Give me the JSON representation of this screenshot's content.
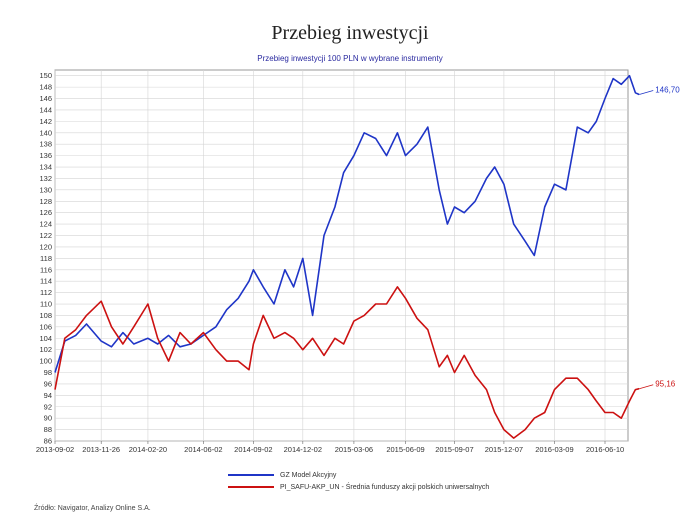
{
  "page": {
    "title": "Przebieg inwestycji",
    "source": "Źródło: Navigator, Analizy Online S.A."
  },
  "chart_data": {
    "type": "line",
    "title": "Przebieg inwestycji 100 PLN w wybrane instrumenty",
    "xlabel": "",
    "ylabel": "",
    "ylim": [
      86,
      151
    ],
    "grid": true,
    "legend_position": "bottom",
    "x_ticks": [
      "2013-09-02",
      "2013-11-26",
      "2014-02-20",
      "2014-06-02",
      "2014-09-02",
      "2014-12-02",
      "2015-03-06",
      "2015-06-09",
      "2015-09-07",
      "2015-12-07",
      "2016-03-09",
      "2016-06-10"
    ],
    "y_ticks": [
      86,
      88,
      90,
      92,
      94,
      96,
      98,
      100,
      102,
      104,
      106,
      108,
      110,
      112,
      114,
      116,
      118,
      120,
      122,
      124,
      126,
      128,
      130,
      132,
      134,
      136,
      138,
      140,
      142,
      144,
      146,
      148,
      150
    ],
    "series": [
      {
        "name": "GZ Model Akcyjny",
        "color": "#1f35c7",
        "end_label": "146,70",
        "x": [
          "2013-09-02",
          "2013-09-20",
          "2013-10-10",
          "2013-10-30",
          "2013-11-26",
          "2013-12-15",
          "2014-01-05",
          "2014-01-25",
          "2014-02-20",
          "2014-03-10",
          "2014-03-30",
          "2014-04-20",
          "2014-05-10",
          "2014-06-02",
          "2014-06-25",
          "2014-07-15",
          "2014-08-05",
          "2014-08-25",
          "2014-09-02",
          "2014-09-20",
          "2014-10-10",
          "2014-10-30",
          "2014-11-15",
          "2014-12-02",
          "2014-12-20",
          "2015-01-10",
          "2015-01-30",
          "2015-02-15",
          "2015-03-06",
          "2015-03-25",
          "2015-04-15",
          "2015-05-05",
          "2015-05-25",
          "2015-06-09",
          "2015-06-30",
          "2015-07-20",
          "2015-08-10",
          "2015-08-25",
          "2015-09-07",
          "2015-09-25",
          "2015-10-15",
          "2015-11-05",
          "2015-11-20",
          "2015-12-07",
          "2015-12-25",
          "2016-01-15",
          "2016-02-01",
          "2016-02-20",
          "2016-03-09",
          "2016-03-30",
          "2016-04-20",
          "2016-05-10",
          "2016-05-25",
          "2016-06-10",
          "2016-06-25",
          "2016-07-10",
          "2016-07-25",
          "2016-08-05",
          "2016-08-12"
        ],
        "values": [
          98.0,
          103.5,
          104.5,
          106.5,
          103.5,
          102.5,
          105.0,
          103.0,
          104.0,
          103.0,
          104.5,
          102.5,
          103.0,
          104.5,
          106.0,
          109.0,
          111.0,
          114.0,
          116.0,
          113.0,
          110.0,
          116.0,
          113.0,
          118.0,
          108.0,
          122.0,
          127.0,
          133.0,
          136.0,
          140.0,
          139.0,
          136.0,
          140.0,
          136.0,
          138.0,
          141.0,
          130.0,
          124.0,
          127.0,
          126.0,
          128.0,
          132.0,
          134.0,
          131.0,
          124.0,
          121.0,
          118.5,
          127.0,
          131.0,
          130.0,
          141.0,
          140.0,
          142.0,
          146.0,
          149.5,
          148.5,
          150.0,
          147.0,
          146.7
        ]
      },
      {
        "name": "PI_SAFU-AKP_UN - Średnia funduszy akcji polskich uniwersalnych",
        "color": "#cc1111",
        "end_label": "95,16",
        "x": [
          "2013-09-02",
          "2013-09-20",
          "2013-10-10",
          "2013-10-30",
          "2013-11-26",
          "2013-12-15",
          "2014-01-05",
          "2014-01-25",
          "2014-02-20",
          "2014-03-10",
          "2014-03-30",
          "2014-04-20",
          "2014-05-10",
          "2014-06-02",
          "2014-06-25",
          "2014-07-15",
          "2014-08-05",
          "2014-08-25",
          "2014-09-02",
          "2014-09-20",
          "2014-10-10",
          "2014-10-30",
          "2014-11-15",
          "2014-12-02",
          "2014-12-20",
          "2015-01-10",
          "2015-01-30",
          "2015-02-15",
          "2015-03-06",
          "2015-03-25",
          "2015-04-15",
          "2015-05-05",
          "2015-05-25",
          "2015-06-09",
          "2015-06-30",
          "2015-07-20",
          "2015-08-10",
          "2015-08-25",
          "2015-09-07",
          "2015-09-25",
          "2015-10-15",
          "2015-11-05",
          "2015-11-20",
          "2015-12-07",
          "2015-12-25",
          "2016-01-15",
          "2016-02-01",
          "2016-02-20",
          "2016-03-09",
          "2016-03-30",
          "2016-04-20",
          "2016-05-10",
          "2016-05-25",
          "2016-06-10",
          "2016-06-25",
          "2016-07-10",
          "2016-07-25",
          "2016-08-05",
          "2016-08-12"
        ],
        "values": [
          95.0,
          104.0,
          105.5,
          108.0,
          110.5,
          106.0,
          103.0,
          106.0,
          110.0,
          104.0,
          100.0,
          105.0,
          103.0,
          105.0,
          102.0,
          100.0,
          100.0,
          98.5,
          103.0,
          108.0,
          104.0,
          105.0,
          104.0,
          102.0,
          104.0,
          101.0,
          104.0,
          103.0,
          107.0,
          108.0,
          110.0,
          110.0,
          113.0,
          111.0,
          107.5,
          105.5,
          99.0,
          101.0,
          98.0,
          101.0,
          97.5,
          95.0,
          91.0,
          88.0,
          86.5,
          88.0,
          90.0,
          91.0,
          95.0,
          97.0,
          97.0,
          95.0,
          93.0,
          91.0,
          91.0,
          90.0,
          93.0,
          95.0,
          95.16
        ]
      }
    ]
  }
}
